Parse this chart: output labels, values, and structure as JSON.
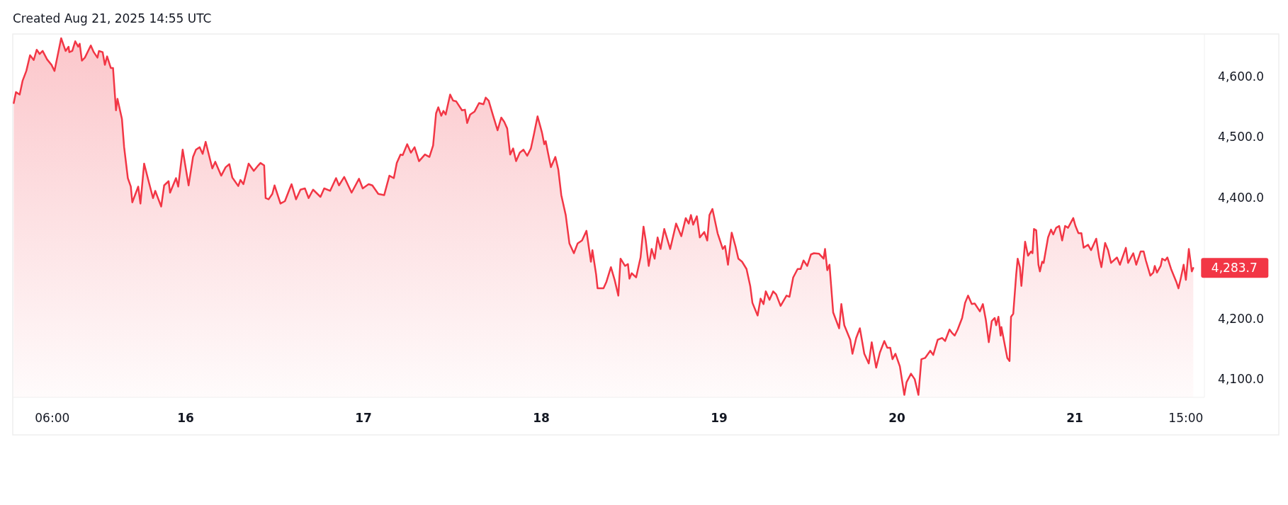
{
  "chart_data": {
    "type": "area",
    "annotations": [
      "Created Aug 21, 2025 14:55 UTC",
      {
        "text": "4,283.7",
        "x": "2025-08-21T16:00",
        "y": 4283.7
      }
    ],
    "xlim": [
      "2025-08-15T00:40",
      "2025-08-21T17:30"
    ],
    "xticks": [
      {
        "value": "2025-08-15T06:00",
        "label": "06:00"
      },
      {
        "value": "2025-08-16T00:00",
        "label": "16"
      },
      {
        "value": "2025-08-17T00:00",
        "label": "17"
      },
      {
        "value": "2025-08-18T00:00",
        "label": "18"
      },
      {
        "value": "2025-08-19T00:00",
        "label": "19"
      },
      {
        "value": "2025-08-20T00:00",
        "label": "20"
      },
      {
        "value": "2025-08-21T00:00",
        "label": "21"
      },
      {
        "value": "2025-08-21T15:00",
        "label": "15:00"
      }
    ],
    "ylim": [
      4070,
      4670
    ],
    "yticks": [
      {
        "value": 4100,
        "label": "4,100.0"
      },
      {
        "value": 4200,
        "label": "4,200.0"
      },
      {
        "value": 4400,
        "label": "4,400.0"
      },
      {
        "value": 4500,
        "label": "4,500.0"
      },
      {
        "value": 4600,
        "label": "4,600.0"
      }
    ],
    "grid": false,
    "x": [
      "2025-08-15T00:48",
      "2025-08-15T01:06",
      "2025-08-15T01:36",
      "2025-08-15T02:00",
      "2025-08-15T02:30",
      "2025-08-15T03:00",
      "2025-08-15T03:30",
      "2025-08-15T03:54",
      "2025-08-15T04:18",
      "2025-08-15T04:42",
      "2025-08-15T05:18",
      "2025-08-15T05:54",
      "2025-08-15T06:18",
      "2025-08-15T07:12",
      "2025-08-15T07:48",
      "2025-08-15T08:12",
      "2025-08-15T08:18",
      "2025-08-15T08:42",
      "2025-08-15T09:06",
      "2025-08-15T09:30",
      "2025-08-15T09:42",
      "2025-08-15T10:00",
      "2025-08-15T10:24",
      "2025-08-15T11:12",
      "2025-08-15T11:36",
      "2025-08-15T12:06",
      "2025-08-15T12:18",
      "2025-08-15T12:48",
      "2025-08-15T13:06",
      "2025-08-15T13:24",
      "2025-08-15T13:54",
      "2025-08-15T14:12",
      "2025-08-15T14:36",
      "2025-08-15T14:48",
      "2025-08-15T15:24",
      "2025-08-15T15:42",
      "2025-08-15T16:12",
      "2025-08-15T16:36",
      "2025-08-15T16:48",
      "2025-08-15T17:36",
      "2025-08-15T17:54",
      "2025-08-15T18:24",
      "2025-08-15T19:00",
      "2025-08-15T19:36",
      "2025-08-15T19:54",
      "2025-08-15T20:42",
      "2025-08-15T21:06",
      "2025-08-15T21:42",
      "2025-08-15T21:54",
      "2025-08-15T22:42",
      "2025-08-15T23:00",
      "2025-08-15T23:36",
      "2025-08-16T00:24",
      "2025-08-16T01:00",
      "2025-08-16T01:24",
      "2025-08-16T01:54",
      "2025-08-16T02:18",
      "2025-08-16T02:42",
      "2025-08-16T03:36",
      "2025-08-16T04:00",
      "2025-08-16T04:48",
      "2025-08-16T05:24",
      "2025-08-16T05:54",
      "2025-08-16T06:18",
      "2025-08-16T07:06",
      "2025-08-16T07:24",
      "2025-08-16T07:48",
      "2025-08-16T08:30",
      "2025-08-16T09:12",
      "2025-08-16T09:48",
      "2025-08-16T10:06",
      "2025-08-16T10:36",
      "2025-08-16T10:48",
      "2025-08-16T11:12",
      "2025-08-16T11:42",
      "2025-08-16T12:00",
      "2025-08-16T12:48",
      "2025-08-16T13:24",
      "2025-08-16T14:00",
      "2025-08-16T14:18",
      "2025-08-16T14:54",
      "2025-08-16T15:30",
      "2025-08-16T16:06",
      "2025-08-16T16:36",
      "2025-08-16T17:12",
      "2025-08-16T18:12",
      "2025-08-16T18:42",
      "2025-08-16T19:30",
      "2025-08-16T20:18",
      "2025-08-16T20:42",
      "2025-08-16T21:24",
      "2025-08-16T22:24",
      "2025-08-16T23:24",
      "2025-08-16T23:54",
      "2025-08-17T00:42",
      "2025-08-17T01:12",
      "2025-08-17T02:00",
      "2025-08-17T02:48",
      "2025-08-17T03:30",
      "2025-08-17T04:06",
      "2025-08-17T04:30",
      "2025-08-17T05:00",
      "2025-08-17T05:18",
      "2025-08-17T05:54",
      "2025-08-17T06:24",
      "2025-08-17T06:54",
      "2025-08-17T07:30",
      "2025-08-17T08:18",
      "2025-08-17T08:54",
      "2025-08-17T09:24",
      "2025-08-17T09:48",
      "2025-08-17T10:06",
      "2025-08-17T10:30",
      "2025-08-17T10:48",
      "2025-08-17T11:06",
      "2025-08-17T11:42",
      "2025-08-17T12:06",
      "2025-08-17T12:30",
      "2025-08-17T13:18",
      "2025-08-17T13:42",
      "2025-08-17T14:00",
      "2025-08-17T14:24",
      "2025-08-17T15:00",
      "2025-08-17T15:36",
      "2025-08-17T16:12",
      "2025-08-17T16:30",
      "2025-08-17T16:54",
      "2025-08-17T17:30",
      "2025-08-17T18:06",
      "2025-08-17T18:36",
      "2025-08-17T19:00",
      "2025-08-17T19:24",
      "2025-08-17T19:48",
      "2025-08-17T20:12",
      "2025-08-17T20:36",
      "2025-08-17T21:06",
      "2025-08-17T21:36",
      "2025-08-17T22:06",
      "2025-08-17T22:36",
      "2025-08-17T23:00",
      "2025-08-17T23:30",
      "2025-08-18T00:06",
      "2025-08-18T00:24",
      "2025-08-18T00:36",
      "2025-08-18T00:54",
      "2025-08-18T01:18",
      "2025-08-18T01:54",
      "2025-08-18T02:18",
      "2025-08-18T02:42",
      "2025-08-18T03:18",
      "2025-08-18T03:48",
      "2025-08-18T04:24",
      "2025-08-18T04:54",
      "2025-08-18T05:30",
      "2025-08-18T06:06",
      "2025-08-18T06:42",
      "2025-08-18T06:54",
      "2025-08-18T07:24",
      "2025-08-18T07:36",
      "2025-08-18T08:24",
      "2025-08-18T08:48",
      "2025-08-18T09:24",
      "2025-08-18T09:54",
      "2025-08-18T10:24",
      "2025-08-18T10:42",
      "2025-08-18T11:18",
      "2025-08-18T11:42",
      "2025-08-18T11:54",
      "2025-08-18T12:12",
      "2025-08-18T12:48",
      "2025-08-18T13:24",
      "2025-08-18T13:48",
      "2025-08-18T14:06",
      "2025-08-18T14:30",
      "2025-08-18T14:54",
      "2025-08-18T15:18",
      "2025-08-18T15:42",
      "2025-08-18T16:06",
      "2025-08-18T16:36",
      "2025-08-18T17:24",
      "2025-08-18T18:12",
      "2025-08-18T18:54",
      "2025-08-18T19:30",
      "2025-08-18T19:54",
      "2025-08-18T20:12",
      "2025-08-18T20:30",
      "2025-08-18T21:00",
      "2025-08-18T21:24",
      "2025-08-18T22:00",
      "2025-08-18T22:24",
      "2025-08-18T22:42",
      "2025-08-18T23:06",
      "2025-08-18T23:48",
      "2025-08-19T00:30",
      "2025-08-19T00:48",
      "2025-08-19T01:12",
      "2025-08-19T01:42",
      "2025-08-19T02:12",
      "2025-08-19T02:36",
      "2025-08-19T03:06",
      "2025-08-19T03:42",
      "2025-08-19T04:12",
      "2025-08-19T04:30",
      "2025-08-19T05:12",
      "2025-08-19T05:36",
      "2025-08-19T06:00",
      "2025-08-19T06:18",
      "2025-08-19T06:48",
      "2025-08-19T07:18",
      "2025-08-19T07:42",
      "2025-08-19T08:18",
      "2025-08-19T09:06",
      "2025-08-19T09:30",
      "2025-08-19T10:00",
      "2025-08-19T10:36",
      "2025-08-19T11:00",
      "2025-08-19T11:24",
      "2025-08-19T11:54",
      "2025-08-19T12:24",
      "2025-08-19T12:48",
      "2025-08-19T13:30",
      "2025-08-19T14:06",
      "2025-08-19T14:18",
      "2025-08-19T14:36",
      "2025-08-19T14:54",
      "2025-08-19T15:24",
      "2025-08-19T16:12",
      "2025-08-19T16:30",
      "2025-08-19T16:54",
      "2025-08-19T17:42",
      "2025-08-19T18:00",
      "2025-08-19T18:30",
      "2025-08-19T19:00",
      "2025-08-19T19:36",
      "2025-08-19T20:12",
      "2025-08-19T20:36",
      "2025-08-19T21:12",
      "2025-08-19T21:42",
      "2025-08-19T22:18",
      "2025-08-19T22:42",
      "2025-08-19T23:06",
      "2025-08-19T23:24",
      "2025-08-19T23:48",
      "2025-08-20T00:24",
      "2025-08-20T01:00",
      "2025-08-20T01:18",
      "2025-08-20T01:54",
      "2025-08-20T02:24",
      "2025-08-20T02:54",
      "2025-08-20T03:18",
      "2025-08-20T03:48",
      "2025-08-20T04:30",
      "2025-08-20T04:54",
      "2025-08-20T05:30",
      "2025-08-20T06:06",
      "2025-08-20T06:30",
      "2025-08-20T07:06",
      "2025-08-20T07:24",
      "2025-08-20T07:48",
      "2025-08-20T08:12",
      "2025-08-20T08:48",
      "2025-08-20T09:12",
      "2025-08-20T09:36",
      "2025-08-20T10:06",
      "2025-08-20T10:30",
      "2025-08-20T11:12",
      "2025-08-20T11:36",
      "2025-08-20T12:00",
      "2025-08-20T12:24",
      "2025-08-20T12:48",
      "2025-08-20T13:12",
      "2025-08-20T13:24",
      "2025-08-20T13:42",
      "2025-08-20T14:00",
      "2025-08-20T14:06",
      "2025-08-20T14:54",
      "2025-08-20T15:12",
      "2025-08-20T15:24",
      "2025-08-20T15:42",
      "2025-08-20T16:06",
      "2025-08-20T16:18",
      "2025-08-20T16:36",
      "2025-08-20T16:48",
      "2025-08-20T17:18",
      "2025-08-20T17:42",
      "2025-08-20T18:06",
      "2025-08-20T18:18",
      "2025-08-20T18:30",
      "2025-08-20T18:48",
      "2025-08-20T19:06",
      "2025-08-20T19:18",
      "2025-08-20T19:36",
      "2025-08-20T19:48",
      "2025-08-20T20:24",
      "2025-08-20T20:48",
      "2025-08-20T21:06",
      "2025-08-20T21:30",
      "2025-08-20T21:54",
      "2025-08-20T22:18",
      "2025-08-20T22:42",
      "2025-08-20T23:06",
      "2025-08-20T23:48",
      "2025-08-21T00:06",
      "2025-08-21T00:30",
      "2025-08-21T00:54",
      "2025-08-21T01:12",
      "2025-08-21T01:48",
      "2025-08-21T02:12",
      "2025-08-21T02:54",
      "2025-08-21T03:18",
      "2025-08-21T03:36",
      "2025-08-21T04:06",
      "2025-08-21T04:30",
      "2025-08-21T04:54",
      "2025-08-21T05:42",
      "2025-08-21T06:06",
      "2025-08-21T06:54",
      "2025-08-21T07:12",
      "2025-08-21T07:54",
      "2025-08-21T08:18",
      "2025-08-21T08:54",
      "2025-08-21T09:18",
      "2025-08-21T09:36",
      "2025-08-21T10:12",
      "2025-08-21T10:36",
      "2025-08-21T10:48",
      "2025-08-21T11:06",
      "2025-08-21T11:36",
      "2025-08-21T11:48",
      "2025-08-21T12:12",
      "2025-08-21T12:30",
      "2025-08-21T13:00",
      "2025-08-21T13:42",
      "2025-08-21T14:00",
      "2025-08-21T14:18",
      "2025-08-21T14:42",
      "2025-08-21T15:00",
      "2025-08-21T15:24",
      "2025-08-21T15:48",
      "2025-08-21T16:00"
    ],
    "series": [
      {
        "color": "#f23645",
        "values": [
          4556,
          4574,
          4570,
          4593,
          4609,
          4635,
          4627,
          4644,
          4637,
          4642,
          4628,
          4619,
          4609,
          4663,
          4642,
          4649,
          4640,
          4642,
          4658,
          4649,
          4654,
          4626,
          4631,
          4651,
          4640,
          4631,
          4642,
          4640,
          4619,
          4633,
          4614,
          4614,
          4544,
          4563,
          4530,
          4483,
          4432,
          4418,
          4392,
          4418,
          4390,
          4456,
          4427,
          4399,
          4411,
          4385,
          4420,
          4427,
          4408,
          4432,
          4418,
          4479,
          4420,
          4467,
          4479,
          4483,
          4472,
          4492,
          4448,
          4459,
          4436,
          4450,
          4455,
          4433,
          4419,
          4429,
          4422,
          4456,
          4444,
          4453,
          4457,
          4453,
          4399,
          4397,
          4406,
          4420,
          4390,
          4394,
          4413,
          4422,
          4397,
          4413,
          4415,
          4399,
          4413,
          4401,
          4415,
          4411,
          4432,
          4420,
          4434,
          4408,
          4431,
          4415,
          4422,
          4420,
          4406,
          4404,
          4436,
          4432,
          4457,
          4471,
          4470,
          4488,
          4474,
          4483,
          4460,
          4471,
          4467,
          4486,
          4539,
          4549,
          4535,
          4543,
          4537,
          4570,
          4560,
          4559,
          4544,
          4545,
          4523,
          4537,
          4542,
          4556,
          4554,
          4565,
          4560,
          4535,
          4511,
          4532,
          4525,
          4514,
          4471,
          4481,
          4460,
          4474,
          4479,
          4469,
          4481,
          4504,
          4534,
          4507,
          4488,
          4493,
          4474,
          4450,
          4467,
          4446,
          4404,
          4371,
          4324,
          4308,
          4324,
          4329,
          4345,
          4294,
          4313,
          4273,
          4250,
          4250,
          4261,
          4285,
          4264,
          4238,
          4299,
          4287,
          4290,
          4266,
          4275,
          4268,
          4301,
          4352,
          4329,
          4287,
          4315,
          4299,
          4334,
          4315,
          4348,
          4315,
          4357,
          4336,
          4366,
          4357,
          4371,
          4355,
          4369,
          4334,
          4343,
          4329,
          4371,
          4381,
          4341,
          4315,
          4320,
          4289,
          4342,
          4320,
          4299,
          4294,
          4282,
          4254,
          4226,
          4205,
          4233,
          4224,
          4245,
          4231,
          4245,
          4240,
          4221,
          4238,
          4236,
          4268,
          4282,
          4282,
          4296,
          4287,
          4306,
          4308,
          4307,
          4299,
          4315,
          4280,
          4289,
          4210,
          4184,
          4224,
          4189,
          4165,
          4142,
          4168,
          4184,
          4142,
          4126,
          4161,
          4119,
          4144,
          4163,
          4152,
          4152,
          4133,
          4142,
          4121,
          4074,
          4095,
          4109,
          4100,
          4074,
          4133,
          4135,
          4147,
          4140,
          4165,
          4168,
          4163,
          4182,
          4177,
          4172,
          4182,
          4201,
          4226,
          4238,
          4224,
          4225,
          4212,
          4224,
          4198,
          4161,
          4196,
          4201,
          4189,
          4203,
          4172,
          4186,
          4135,
          4130,
          4203,
          4208,
          4273,
          4299,
          4285,
          4254,
          4327,
          4304,
          4311,
          4308,
          4348,
          4346,
          4289,
          4278,
          4294,
          4292,
          4334,
          4347,
          4339,
          4350,
          4353,
          4329,
          4353,
          4350,
          4366,
          4353,
          4341,
          4341,
          4317,
          4322,
          4313,
          4332,
          4301,
          4285,
          4325,
          4313,
          4292,
          4301,
          4289,
          4317,
          4292,
          4308,
          4289,
          4311,
          4311,
          4296,
          4271,
          4276,
          4287,
          4276,
          4287,
          4299,
          4296,
          4301,
          4282,
          4261,
          4250,
          4266,
          4289,
          4264,
          4315,
          4278,
          4283.7
        ]
      }
    ]
  }
}
